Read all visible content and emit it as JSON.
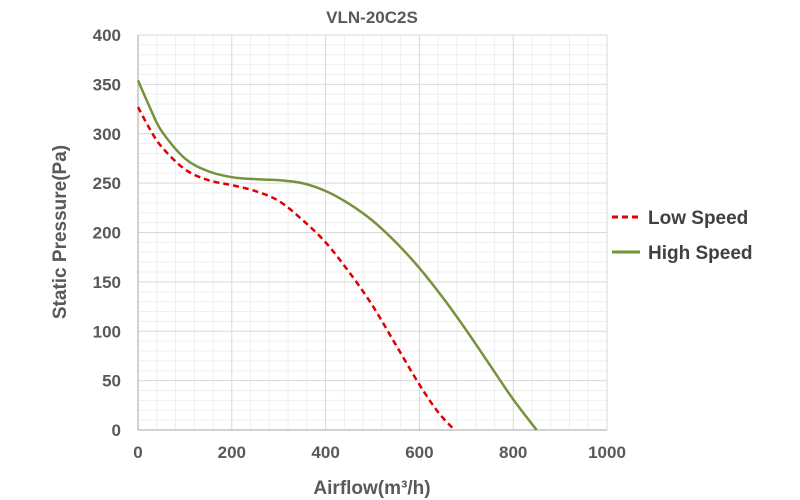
{
  "chart_data": {
    "type": "line",
    "title": "VLN-20C2S",
    "xlabel": "Airflow(m³/h)",
    "ylabel": "Static Pressure(Pa)",
    "xlim": [
      0,
      1000
    ],
    "ylim": [
      0,
      400
    ],
    "xticks": [
      0,
      200,
      400,
      600,
      800,
      1000
    ],
    "yticks": [
      0,
      50,
      100,
      150,
      200,
      250,
      300,
      350,
      400
    ],
    "grid": true,
    "legend_position": "right",
    "series": [
      {
        "name": "Low Speed",
        "color": "#e00000",
        "line_style": "dashed",
        "x": [
          0,
          25,
          50,
          100,
          150,
          200,
          250,
          300,
          350,
          400,
          450,
          500,
          550,
          600,
          640,
          675
        ],
        "y": [
          327,
          305,
          287,
          264,
          253,
          248,
          242,
          232,
          213,
          190,
          160,
          126,
          86,
          46,
          18,
          0
        ]
      },
      {
        "name": "High Speed",
        "color": "#76923c",
        "line_style": "solid",
        "x": [
          0,
          25,
          50,
          100,
          150,
          200,
          250,
          300,
          350,
          400,
          450,
          500,
          550,
          600,
          650,
          700,
          750,
          800,
          850
        ],
        "y": [
          354,
          327,
          303,
          275,
          262,
          256,
          254,
          253,
          250,
          242,
          229,
          212,
          190,
          164,
          134,
          101,
          66,
          31,
          0
        ]
      }
    ]
  }
}
